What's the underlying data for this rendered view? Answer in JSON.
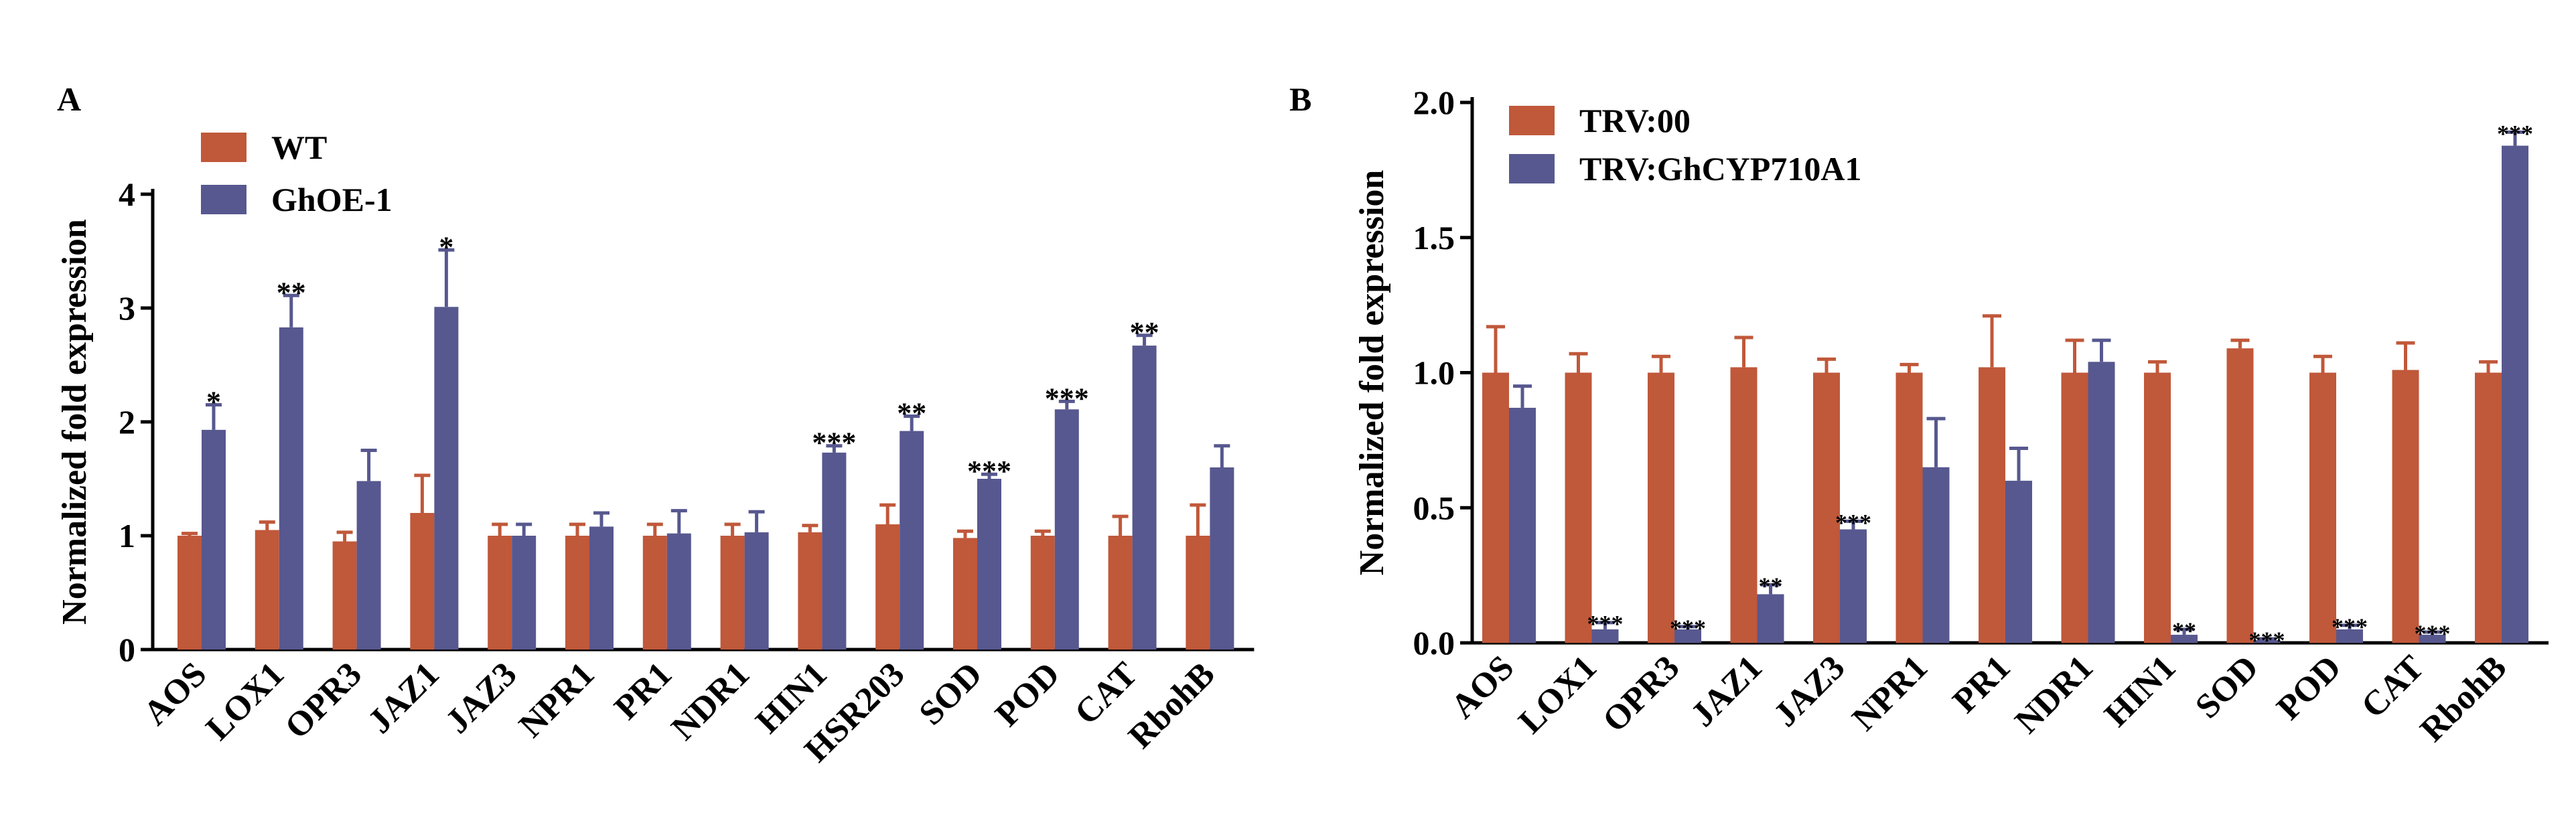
{
  "chart_data": [
    {
      "panel": "A",
      "type": "bar",
      "ylabel": "Normalized fold expression",
      "ylim": [
        0,
        4
      ],
      "yticks": [
        "0",
        "1",
        "2",
        "3",
        "4"
      ],
      "legend_position": "top-left",
      "categories": [
        "AOS",
        "LOX1",
        "OPR3",
        "JAZ1",
        "JAZ3",
        "NPR1",
        "PR1",
        "NDR1",
        "HIN1",
        "HSR203",
        "SOD",
        "POD",
        "CAT",
        "RbohB"
      ],
      "series": [
        {
          "name": "WT",
          "color": "#c0583a",
          "values": [
            1.0,
            1.05,
            0.95,
            1.2,
            1.0,
            1.0,
            1.0,
            1.0,
            1.03,
            1.1,
            0.98,
            1.0,
            1.0,
            1.0
          ],
          "errors": [
            0.02,
            0.07,
            0.08,
            0.33,
            0.1,
            0.1,
            0.1,
            0.1,
            0.06,
            0.17,
            0.06,
            0.04,
            0.17,
            0.27
          ]
        },
        {
          "name": "GhOE-1",
          "color": "#57588f",
          "values": [
            1.93,
            2.83,
            1.48,
            3.01,
            1.0,
            1.08,
            1.02,
            1.03,
            1.73,
            1.92,
            1.5,
            2.11,
            2.67,
            1.6
          ],
          "errors": [
            0.22,
            0.28,
            0.27,
            0.5,
            0.1,
            0.12,
            0.2,
            0.18,
            0.06,
            0.13,
            0.04,
            0.07,
            0.09,
            0.19
          ]
        }
      ],
      "significance": [
        "*",
        "**",
        "",
        "*",
        "",
        "",
        "",
        "",
        "***",
        "**",
        "***",
        "***",
        "**",
        ""
      ]
    },
    {
      "panel": "B",
      "type": "bar",
      "ylabel": "Normalized fold expression",
      "ylim": [
        0,
        2.0
      ],
      "yticks": [
        "0.0",
        "0.5",
        "1.0",
        "1.5",
        "2.0"
      ],
      "legend_position": "top-left",
      "categories": [
        "AOS",
        "LOX1",
        "OPR3",
        "JAZ1",
        "JAZ3",
        "NPR1",
        "PR1",
        "NDR1",
        "HIN1",
        "SOD",
        "POD",
        "CAT",
        "RbohB"
      ],
      "series": [
        {
          "name": "TRV:00",
          "color": "#c0583a",
          "values": [
            1.0,
            1.0,
            1.0,
            1.02,
            1.0,
            1.0,
            1.02,
            1.0,
            1.0,
            1.09,
            1.0,
            1.01,
            1.0
          ],
          "errors": [
            0.17,
            0.07,
            0.06,
            0.11,
            0.05,
            0.03,
            0.19,
            0.12,
            0.04,
            0.03,
            0.06,
            0.1,
            0.04
          ]
        },
        {
          "name": "TRV:GhCYP710A1",
          "color": "#57588f",
          "values": [
            0.87,
            0.05,
            0.05,
            0.18,
            0.42,
            0.65,
            0.6,
            1.04,
            0.03,
            0.01,
            0.05,
            0.03,
            1.84
          ],
          "errors": [
            0.08,
            0.025,
            0.01,
            0.035,
            0.03,
            0.18,
            0.12,
            0.08,
            0.02,
            0.005,
            0.015,
            0.01,
            0.05
          ]
        }
      ],
      "significance": [
        "",
        "***",
        "***",
        "**",
        "***",
        "",
        "",
        "",
        "**",
        "***",
        "***",
        "***",
        "***"
      ]
    }
  ]
}
